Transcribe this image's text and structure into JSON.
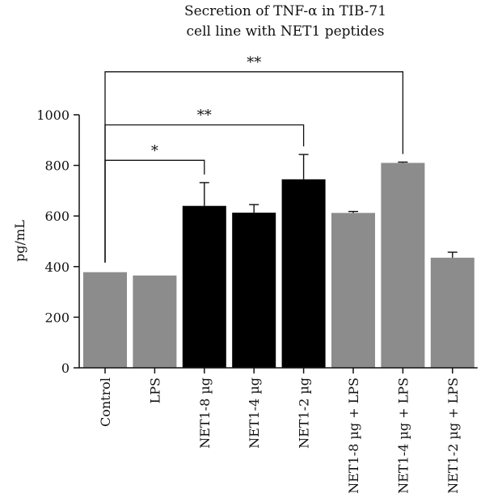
{
  "chart_data": {
    "type": "bar",
    "title_lines": [
      "Secretion of TNF-α in TIB-71",
      "cell line with NET1 peptides"
    ],
    "xlabel": "",
    "ylabel": "pg/mL",
    "ylim": [
      0,
      1000
    ],
    "yticks": [
      0,
      200,
      400,
      600,
      800,
      1000
    ],
    "grid": false,
    "legend": "none",
    "categories": [
      "Control",
      "LPS",
      "NET1-8 µg",
      "NET1-4 µg",
      "NET1-2 µg",
      "NET1-8 µg + LPS",
      "NET1-4 µg + LPS",
      "NET1-2 µg + LPS"
    ],
    "values": [
      378,
      365,
      640,
      613,
      745,
      612,
      810,
      435
    ],
    "errors": [
      0,
      0,
      92,
      32,
      98,
      6,
      3,
      22
    ],
    "bar_colors": [
      "#8c8c8c",
      "#8c8c8c",
      "#000000",
      "#000000",
      "#000000",
      "#8c8c8c",
      "#8c8c8c",
      "#8c8c8c"
    ],
    "significance": [
      {
        "from": 0,
        "to": 2,
        "label": "*",
        "level": 820
      },
      {
        "from": 0,
        "to": 4,
        "label": "**",
        "level": 960
      },
      {
        "from": 0,
        "to": 6,
        "label": "**",
        "level": 1170
      }
    ]
  }
}
